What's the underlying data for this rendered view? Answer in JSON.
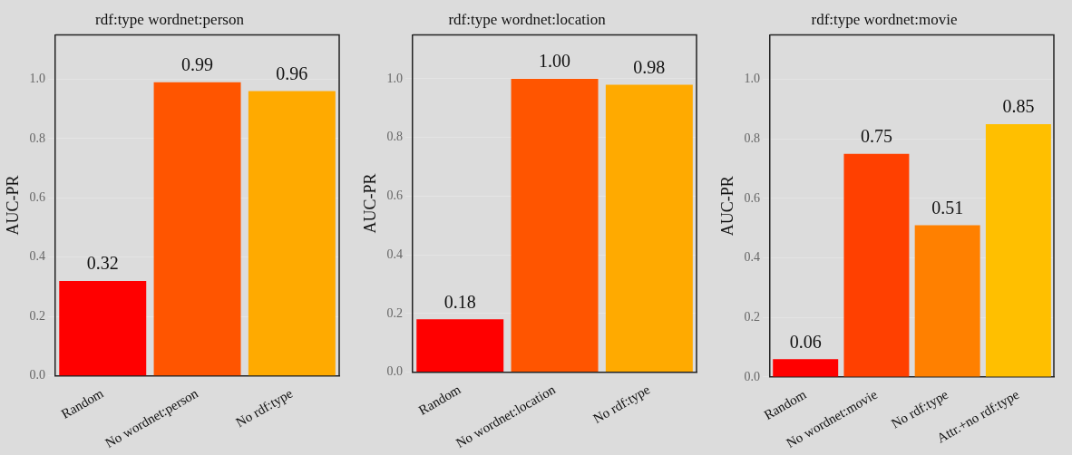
{
  "chart_data": [
    {
      "type": "bar",
      "title": "rdf:type wordnet:person",
      "ylabel": "AUC-PR",
      "categories": [
        "Random",
        "No wordnet:person",
        "No rdf:type"
      ],
      "values": [
        0.32,
        0.99,
        0.96
      ],
      "value_labels": [
        "0.32",
        "0.99",
        "0.96"
      ],
      "colors": [
        "#ff0000",
        "#ff5500",
        "#ffaa00"
      ],
      "ylim": [
        0,
        1.15
      ],
      "yticks": [
        {
          "value": 0,
          "label": "0.0"
        },
        {
          "value": 0.2,
          "label": "0.2"
        },
        {
          "value": 0.4,
          "label": "0.4"
        },
        {
          "value": 0.6,
          "label": "0.6"
        },
        {
          "value": 0.8,
          "label": "0.8"
        },
        {
          "value": 1,
          "label": "1.0"
        }
      ],
      "grid": "y"
    },
    {
      "type": "bar",
      "title": "rdf:type wordnet:location",
      "ylabel": "AUC-PR",
      "categories": [
        "Random",
        "No wordnet:location",
        "No rdf:type"
      ],
      "values": [
        0.18,
        1.0,
        0.98
      ],
      "value_labels": [
        "0.18",
        "1.00",
        "0.98"
      ],
      "colors": [
        "#ff0000",
        "#ff5500",
        "#ffaa00"
      ],
      "ylim": [
        0,
        1.15
      ],
      "yticks": [
        {
          "value": 0,
          "label": "0.0"
        },
        {
          "value": 0.2,
          "label": "0.2"
        },
        {
          "value": 0.4,
          "label": "0.4"
        },
        {
          "value": 0.6,
          "label": "0.6"
        },
        {
          "value": 0.8,
          "label": "0.8"
        },
        {
          "value": 1,
          "label": "1.0"
        }
      ],
      "grid": "y"
    },
    {
      "type": "bar",
      "title": "rdf:type wordnet:movie",
      "ylabel": "AUC-PR",
      "categories": [
        "Random",
        "No wordnet:movie",
        "No rdf:type",
        "Attr.+no rdf:type"
      ],
      "values": [
        0.06,
        0.75,
        0.51,
        0.85
      ],
      "value_labels": [
        "0.06",
        "0.75",
        "0.51",
        "0.85"
      ],
      "colors": [
        "#ff0000",
        "#ff4000",
        "#ff8000",
        "#ffbf00"
      ],
      "ylim": [
        0,
        1.15
      ],
      "yticks": [
        {
          "value": 0,
          "label": "0.0"
        },
        {
          "value": 0.2,
          "label": "0.2"
        },
        {
          "value": 0.4,
          "label": "0.4"
        },
        {
          "value": 0.6,
          "label": "0.6"
        },
        {
          "value": 0.8,
          "label": "0.8"
        },
        {
          "value": 1,
          "label": "1.0"
        }
      ],
      "grid": "y"
    }
  ]
}
